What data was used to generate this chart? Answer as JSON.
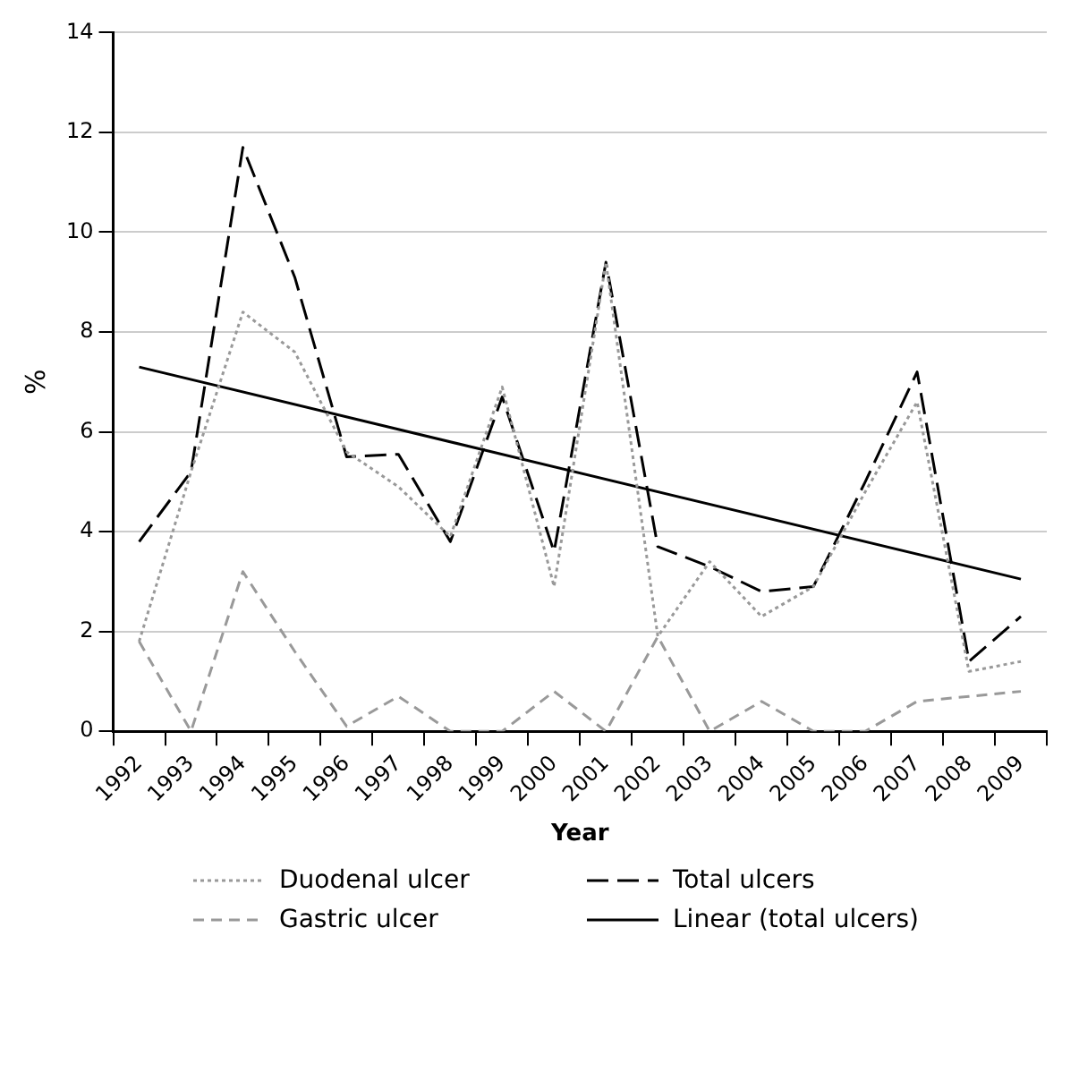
{
  "chart_data": {
    "type": "line",
    "xlabel": "Year",
    "ylabel": "%",
    "categories": [
      "1992",
      "1993",
      "1994",
      "1995",
      "1996",
      "1997",
      "1998",
      "1999",
      "2000",
      "2001",
      "2002",
      "2003",
      "2004",
      "2005",
      "2006",
      "2007",
      "2008",
      "2009"
    ],
    "series": [
      {
        "name": "Duodenal ulcer",
        "color": "#999999",
        "line_style": "dotted",
        "values": [
          1.8,
          5.2,
          8.4,
          7.6,
          5.6,
          4.9,
          3.9,
          6.9,
          2.9,
          9.4,
          1.9,
          3.4,
          2.3,
          2.9,
          4.8,
          6.6,
          1.2,
          1.4
        ]
      },
      {
        "name": "Total ulcers",
        "color": "#000000",
        "line_style": "dashed",
        "values": [
          3.8,
          5.2,
          11.7,
          9.1,
          5.5,
          5.55,
          3.8,
          6.7,
          3.6,
          9.4,
          3.7,
          3.3,
          2.8,
          2.9,
          5.0,
          7.2,
          1.4,
          2.3
        ]
      },
      {
        "name": "Gastric ulcer",
        "color": "#999999",
        "line_style": "dashed",
        "values": [
          1.8,
          0,
          3.2,
          1.6,
          0.1,
          0.7,
          0,
          0,
          0.8,
          0,
          1.9,
          0,
          0.6,
          0,
          0,
          0.6,
          0.7,
          0.8
        ]
      },
      {
        "name": "Linear (total ulcers)",
        "color": "#000000",
        "line_style": "solid",
        "values": [
          7.3,
          null,
          null,
          null,
          null,
          null,
          null,
          null,
          null,
          null,
          null,
          null,
          null,
          null,
          null,
          null,
          null,
          3.05
        ]
      }
    ],
    "ylim": [
      0,
      14
    ],
    "yticks": [
      0,
      2,
      4,
      6,
      8,
      10,
      12,
      14
    ],
    "grid": "y",
    "legend": "bottom",
    "marker": "none"
  }
}
